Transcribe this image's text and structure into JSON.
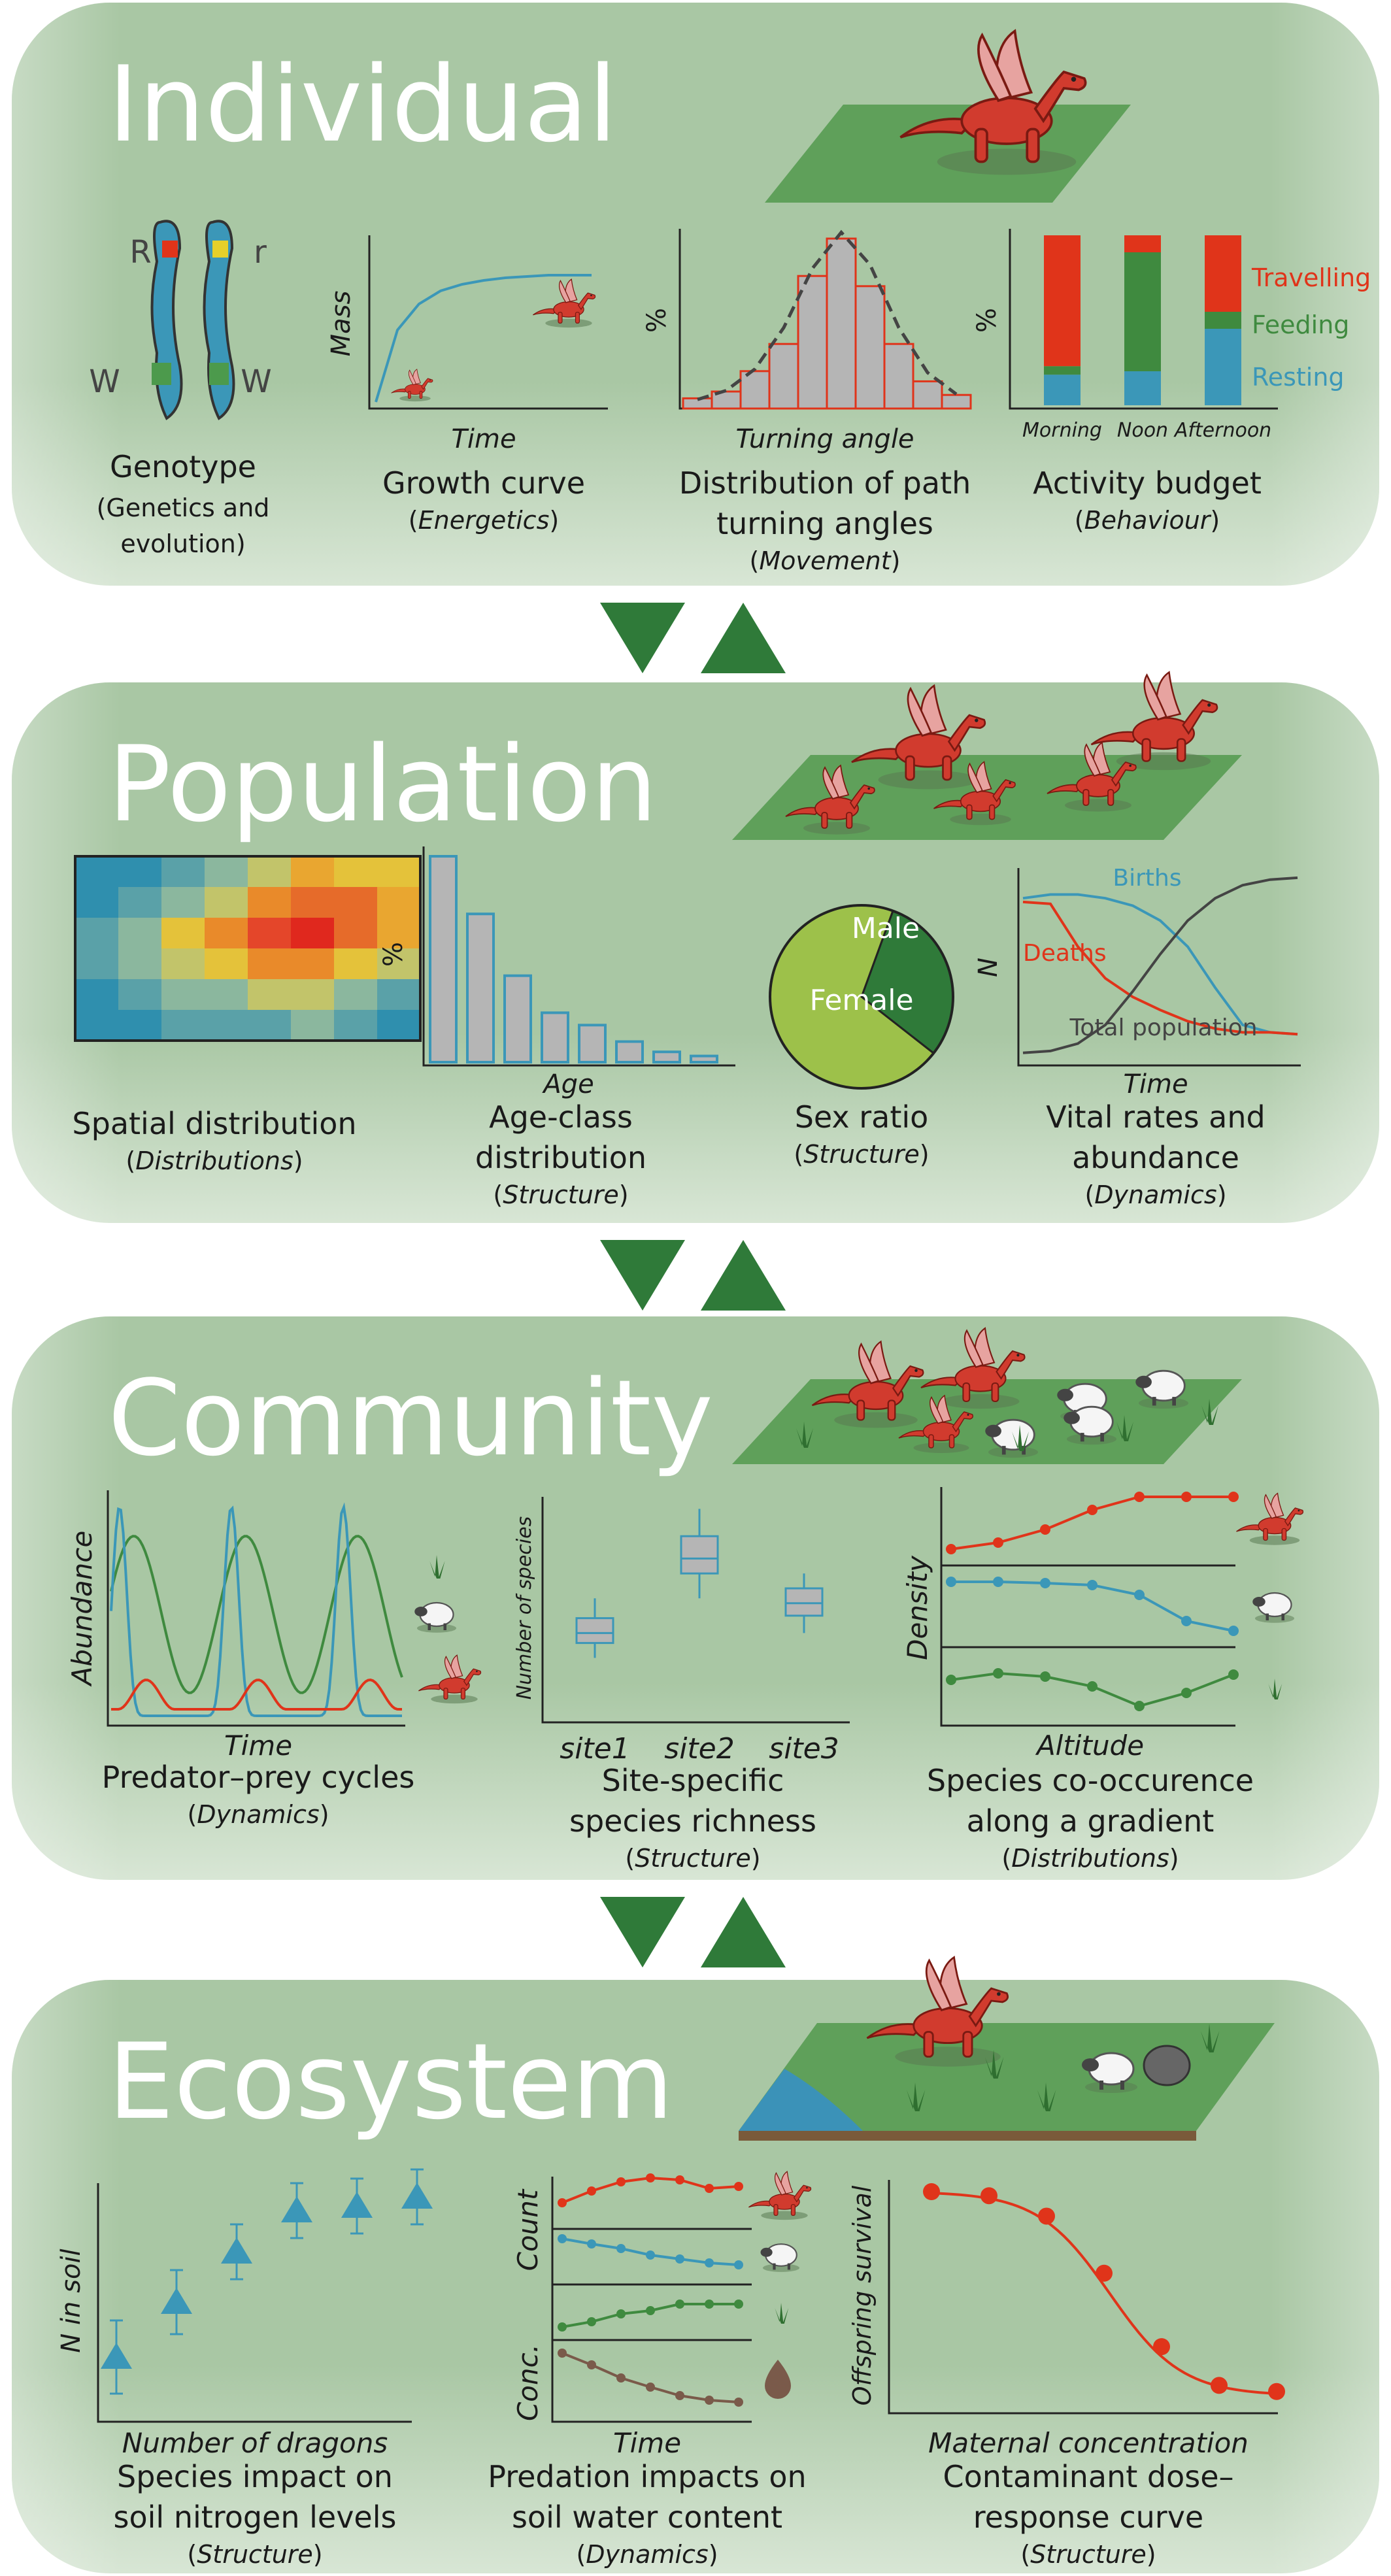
{
  "colors": {
    "panel": "#a9c7a4",
    "panel_fade": "#ffffff",
    "arrow": "#2f7a39",
    "red": "#e0341a",
    "blue": "#3b97b8",
    "green": "#3f8a3f",
    "brown": "#7a5a4a",
    "gray_fill": "#b5b5b5",
    "dark": "#222222"
  },
  "sections": [
    {
      "title": "Individual",
      "panels": [
        {
          "title": "Genotype",
          "subtitle": "Genetics and evolution",
          "labels": [
            "R",
            "r",
            "W",
            "W"
          ]
        },
        {
          "title": "Growth curve",
          "subtitle": "Energetics",
          "xlabel": "Time",
          "ylabel": "Mass"
        },
        {
          "title": "Distribution of path turning angles",
          "subtitle": "Movement",
          "xlabel": "Turning angle",
          "ylabel": "%"
        },
        {
          "title": "Activity budget",
          "subtitle": "Behaviour",
          "ylabel": "%",
          "categories": [
            "Morning",
            "Noon",
            "Afternoon"
          ],
          "legend": [
            "Travelling",
            "Feeding",
            "Resting"
          ]
        }
      ]
    },
    {
      "title": "Population",
      "panels": [
        {
          "title": "Spatial distribution",
          "subtitle": "Distributions"
        },
        {
          "title": "Age-class distribution",
          "subtitle": "Structure",
          "xlabel": "Age",
          "ylabel": "%"
        },
        {
          "title": "Sex ratio",
          "subtitle": "Structure",
          "slices": [
            "Male",
            "Female"
          ]
        },
        {
          "title": "Vital rates and abundance",
          "subtitle": "Dynamics",
          "xlabel": "Time",
          "ylabel": "N",
          "series": [
            "Births",
            "Deaths",
            "Total population"
          ]
        }
      ]
    },
    {
      "title": "Community",
      "panels": [
        {
          "title": "Predator–prey cycles",
          "subtitle": "Dynamics",
          "xlabel": "Time",
          "ylabel": "Abundance"
        },
        {
          "title": "Site-specific species richness",
          "subtitle": "Structure",
          "ylabel": "Number of species",
          "categories": [
            "site1",
            "site2",
            "site3"
          ]
        },
        {
          "title": "Species co-occurence along a gradient",
          "subtitle": "Distributions",
          "xlabel": "Altitude",
          "ylabel": "Density"
        }
      ]
    },
    {
      "title": "Ecosystem",
      "panels": [
        {
          "title": "Species impact on soil nitrogen levels",
          "subtitle": "Structure",
          "xlabel": "Number of dragons",
          "ylabel": "N in soil"
        },
        {
          "title": "Predation impacts on soil water content",
          "subtitle": "Dynamics",
          "xlabel": "Time",
          "ylabels": [
            "Count",
            "Conc."
          ]
        },
        {
          "title": "Contaminant dose–response curve",
          "subtitle": "Structure",
          "xlabel": "Maternal concentration",
          "ylabel": "Offspring survival"
        }
      ]
    }
  ],
  "chart_data": [
    {
      "type": "line",
      "panel": "Growth curve",
      "x": [
        0,
        1,
        2,
        3,
        4,
        5,
        6,
        7,
        8,
        9,
        10
      ],
      "y": [
        0,
        0.55,
        0.75,
        0.85,
        0.9,
        0.93,
        0.95,
        0.96,
        0.97,
        0.97,
        0.97
      ]
    },
    {
      "type": "bar",
      "panel": "Distribution of path turning angles",
      "values": [
        6,
        10,
        22,
        38,
        78,
        100,
        72,
        38,
        16,
        8
      ],
      "curve": [
        5,
        10,
        22,
        45,
        78,
        98,
        80,
        45,
        20,
        8
      ]
    },
    {
      "type": "bar",
      "panel": "Activity budget",
      "categories": [
        "Morning",
        "Noon",
        "Afternoon"
      ],
      "series": [
        {
          "name": "Resting",
          "values": [
            18,
            20,
            45
          ]
        },
        {
          "name": "Feeding",
          "values": [
            5,
            70,
            10
          ]
        },
        {
          "name": "Travelling",
          "values": [
            77,
            10,
            45
          ]
        }
      ]
    },
    {
      "type": "heatmap",
      "panel": "Spatial distribution",
      "values": [
        [
          1,
          1,
          2,
          3,
          4,
          6,
          5,
          5
        ],
        [
          1,
          2,
          3,
          4,
          7,
          8,
          8,
          6
        ],
        [
          2,
          3,
          5,
          7,
          9,
          10,
          8,
          6
        ],
        [
          2,
          3,
          4,
          5,
          7,
          7,
          5,
          4
        ],
        [
          1,
          2,
          3,
          3,
          4,
          4,
          3,
          2
        ],
        [
          1,
          1,
          2,
          2,
          2,
          3,
          2,
          1
        ]
      ]
    },
    {
      "type": "bar",
      "panel": "Age-class distribution",
      "values": [
        100,
        72,
        42,
        24,
        18,
        10,
        5,
        3
      ]
    },
    {
      "type": "pie",
      "panel": "Sex ratio",
      "values": [
        {
          "label": "Male",
          "value": 30
        },
        {
          "label": "Female",
          "value": 70
        }
      ]
    },
    {
      "type": "line",
      "panel": "Vital rates and abundance",
      "x": [
        0,
        1,
        2,
        3,
        4,
        5,
        6,
        7,
        8,
        9,
        10
      ],
      "series": [
        {
          "name": "Births",
          "values": [
            0.88,
            0.9,
            0.9,
            0.88,
            0.84,
            0.76,
            0.62,
            0.4,
            0.2,
            0.16,
            0.15
          ]
        },
        {
          "name": "Deaths",
          "values": [
            0.86,
            0.85,
            0.62,
            0.45,
            0.35,
            0.28,
            0.22,
            0.18,
            0.16,
            0.16,
            0.15
          ]
        },
        {
          "name": "Total population",
          "values": [
            0.05,
            0.06,
            0.1,
            0.2,
            0.38,
            0.58,
            0.76,
            0.88,
            0.95,
            0.98,
            0.99
          ]
        }
      ]
    },
    {
      "type": "box",
      "panel": "Site-specific species richness",
      "categories": [
        "site1",
        "site2",
        "site3"
      ],
      "boxes": [
        {
          "min": 2.2,
          "q1": 2.8,
          "median": 3.2,
          "q3": 3.8,
          "max": 4.6
        },
        {
          "min": 4.6,
          "q1": 5.6,
          "median": 6.2,
          "q3": 7.1,
          "max": 8.2
        },
        {
          "min": 3.2,
          "q1": 3.9,
          "median": 4.4,
          "q3": 5.0,
          "max": 5.6
        }
      ]
    },
    {
      "type": "scatter",
      "panel": "Species impact on soil nitrogen levels",
      "x": [
        1,
        2,
        3,
        4,
        5,
        6
      ],
      "y": [
        1.2,
        2.4,
        3.5,
        4.4,
        4.5,
        4.7
      ],
      "err": [
        0.8,
        0.7,
        0.6,
        0.6,
        0.6,
        0.6
      ]
    },
    {
      "type": "line",
      "panel": "Contaminant dose–response curve",
      "x": [
        0,
        1,
        2,
        3,
        4,
        5,
        6
      ],
      "y": [
        1.0,
        0.98,
        0.88,
        0.6,
        0.24,
        0.05,
        0.02
      ]
    }
  ]
}
